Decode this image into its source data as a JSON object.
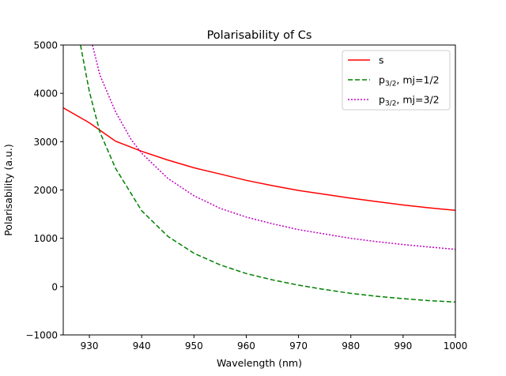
{
  "chart_data": {
    "type": "line",
    "title": "Polarisability of Cs",
    "xlabel": "Wavelength (nm)",
    "ylabel": "Polarisability (a.u.)",
    "xlim": [
      925,
      1000
    ],
    "ylim": [
      -1000,
      5000
    ],
    "xticks": [
      930,
      940,
      950,
      960,
      970,
      980,
      990,
      1000
    ],
    "yticks": [
      -1000,
      0,
      1000,
      2000,
      3000,
      4000,
      5000
    ],
    "xtick_labels": [
      "930",
      "940",
      "950",
      "960",
      "970",
      "980",
      "990",
      "1000"
    ],
    "ytick_labels": [
      "−1000",
      "0",
      "1000",
      "2000",
      "3000",
      "4000",
      "5000"
    ],
    "grid": false,
    "legend_position": "top-right",
    "series": [
      {
        "name": "s",
        "label_main": "s",
        "label_sub": "",
        "label_rest": "",
        "color": "#ff0000",
        "style": "solid",
        "x": [
          925,
          930,
          935,
          940,
          945,
          950,
          955,
          960,
          965,
          970,
          975,
          980,
          985,
          990,
          995,
          1000
        ],
        "y": [
          3700,
          3390,
          3010,
          2800,
          2620,
          2460,
          2330,
          2200,
          2090,
          1990,
          1910,
          1830,
          1760,
          1690,
          1630,
          1580
        ]
      },
      {
        "name": "p3/2, mj=1/2",
        "label_main": "p",
        "label_sub": "3/2",
        "label_rest": ", mj=1/2",
        "color": "#008000",
        "style": "dashed",
        "x": [
          928.3,
          930,
          932,
          935,
          940,
          945,
          950,
          955,
          960,
          965,
          970,
          975,
          980,
          985,
          990,
          995,
          1000
        ],
        "y": [
          5000,
          4030,
          3200,
          2450,
          1570,
          1040,
          690,
          450,
          270,
          140,
          30,
          -60,
          -140,
          -200,
          -250,
          -290,
          -320
        ]
      },
      {
        "name": "p3/2, mj=3/2",
        "label_main": "p",
        "label_sub": "3/2",
        "label_rest": ", mj=3/2",
        "color": "#bf00bf",
        "style": "dotted",
        "x": [
          930.6,
          932,
          935,
          938,
          940,
          945,
          950,
          955,
          960,
          965,
          970,
          975,
          980,
          985,
          990,
          995,
          1000
        ],
        "y": [
          5000,
          4380,
          3620,
          3040,
          2760,
          2240,
          1880,
          1620,
          1440,
          1300,
          1180,
          1090,
          1000,
          930,
          870,
          820,
          770
        ]
      }
    ]
  }
}
